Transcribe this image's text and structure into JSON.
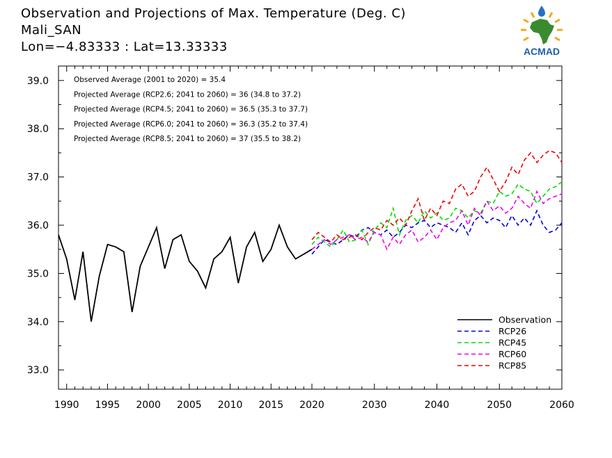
{
  "header": {
    "title_line1": "Observation and Projections of Max. Temperature (Deg. C)",
    "title_line2": "Mali_SAN",
    "title_line3": "Lon=−4.83333 : Lat=13.33333"
  },
  "logo": {
    "text": "ACMAD",
    "colors": {
      "africa": "#3a8a2e",
      "rays": "#f2a91c",
      "drop": "#2a6fc0",
      "text": "#1e5fb0"
    }
  },
  "chart_data": {
    "type": "line",
    "xlim": [
      1989,
      2060
    ],
    "ylim": [
      32.6,
      39.3
    ],
    "x_ticks_left": [
      1990,
      1995,
      2000,
      2005,
      2010,
      2015,
      2020
    ],
    "x_ticks_right": [
      2030,
      2040,
      2050,
      2060
    ],
    "y_ticks": [
      "33.0",
      "34.0",
      "35.0",
      "36.0",
      "37.0",
      "38.0",
      "39.0"
    ],
    "y_tick_values": [
      33,
      34,
      35,
      36,
      37,
      38,
      39
    ],
    "annotations": [
      "Observed Average (2001 to 2020) = 35.4",
      "Projected Average (RCP2.6; 2041 to 2060) = 36 (34.8 to 37.2)",
      "Projected Average (RCP4.5; 2041 to 2060) = 36.5 (35.3 to 37.7)",
      "Projected Average (RCP6.0; 2041 to 2060) = 36.3 (35.2 to 37.4)",
      "Projected Average (RCP8.5; 2041 to 2060) = 37 (35.5 to 38.2)"
    ],
    "legend_position": "bottom-right",
    "series": [
      {
        "name": "Observation",
        "color": "#000000",
        "dashed": false,
        "x": [
          1989,
          1990,
          1991,
          1992,
          1993,
          1994,
          1995,
          1996,
          1997,
          1998,
          1999,
          2000,
          2001,
          2002,
          2003,
          2004,
          2005,
          2006,
          2007,
          2008,
          2009,
          2010,
          2011,
          2012,
          2013,
          2014,
          2015,
          2016,
          2017,
          2018,
          2019,
          2020
        ],
        "y": [
          35.8,
          35.3,
          34.45,
          35.45,
          34.0,
          34.95,
          35.6,
          35.55,
          35.45,
          34.2,
          35.15,
          35.55,
          35.95,
          35.1,
          35.7,
          35.8,
          35.25,
          35.05,
          34.7,
          35.3,
          35.45,
          35.75,
          34.8,
          35.55,
          35.85,
          35.25,
          35.5,
          36.0,
          35.55,
          35.3,
          35.4,
          35.5
        ]
      },
      {
        "name": "RCP26",
        "color": "#0000dd",
        "dashed": true,
        "x": [
          2020,
          2021,
          2022,
          2023,
          2024,
          2025,
          2026,
          2027,
          2028,
          2029,
          2030,
          2031,
          2032,
          2033,
          2034,
          2035,
          2036,
          2037,
          2038,
          2039,
          2040,
          2041,
          2042,
          2043,
          2044,
          2045,
          2046,
          2047,
          2048,
          2049,
          2050,
          2051,
          2052,
          2053,
          2054,
          2055,
          2056,
          2057,
          2058,
          2059,
          2060
        ],
        "y": [
          35.4,
          35.55,
          35.7,
          35.65,
          35.6,
          35.7,
          35.8,
          35.75,
          35.9,
          35.95,
          35.85,
          35.8,
          35.9,
          35.75,
          35.85,
          36.0,
          35.95,
          36.05,
          36.1,
          35.95,
          36.05,
          36.0,
          35.95,
          35.85,
          36.05,
          35.8,
          36.1,
          36.2,
          36.05,
          36.15,
          36.1,
          35.95,
          36.2,
          36.0,
          36.15,
          36.0,
          36.3,
          36.0,
          35.85,
          35.9,
          36.05
        ]
      },
      {
        "name": "RCP45",
        "color": "#00dd00",
        "dashed": true,
        "x": [
          2020,
          2021,
          2022,
          2023,
          2024,
          2025,
          2026,
          2027,
          2028,
          2029,
          2030,
          2031,
          2032,
          2033,
          2034,
          2035,
          2036,
          2037,
          2038,
          2039,
          2040,
          2041,
          2042,
          2043,
          2044,
          2045,
          2046,
          2047,
          2048,
          2049,
          2050,
          2051,
          2052,
          2053,
          2054,
          2055,
          2056,
          2057,
          2058,
          2059,
          2060
        ],
        "y": [
          35.6,
          35.75,
          35.65,
          35.55,
          35.7,
          35.9,
          35.65,
          35.7,
          35.9,
          35.6,
          35.9,
          36.05,
          35.95,
          36.35,
          35.8,
          36.1,
          36.2,
          36.05,
          36.3,
          36.15,
          36.25,
          36.1,
          36.15,
          36.35,
          36.3,
          36.15,
          36.3,
          36.25,
          36.5,
          36.45,
          36.7,
          36.6,
          36.65,
          36.85,
          36.75,
          36.7,
          36.45,
          36.6,
          36.75,
          36.8,
          36.9
        ]
      },
      {
        "name": "RCP60",
        "color": "#ee00ee",
        "dashed": true,
        "x": [
          2020,
          2021,
          2022,
          2023,
          2024,
          2025,
          2026,
          2027,
          2028,
          2029,
          2030,
          2031,
          2032,
          2033,
          2034,
          2035,
          2036,
          2037,
          2038,
          2039,
          2040,
          2041,
          2042,
          2043,
          2044,
          2045,
          2046,
          2047,
          2048,
          2049,
          2050,
          2051,
          2052,
          2053,
          2054,
          2055,
          2056,
          2057,
          2058,
          2059,
          2060
        ],
        "y": [
          35.5,
          35.6,
          35.7,
          35.6,
          35.7,
          35.75,
          35.8,
          35.7,
          35.75,
          35.65,
          35.85,
          35.8,
          35.5,
          35.75,
          35.6,
          35.8,
          35.9,
          35.65,
          35.75,
          35.9,
          35.7,
          35.95,
          36.05,
          36.1,
          36.3,
          36.0,
          36.35,
          36.2,
          36.5,
          36.3,
          36.4,
          36.25,
          36.35,
          36.6,
          36.45,
          36.35,
          36.7,
          36.45,
          36.55,
          36.6,
          36.65
        ]
      },
      {
        "name": "RCP85",
        "color": "#ee0000",
        "dashed": true,
        "x": [
          2020,
          2021,
          2022,
          2023,
          2024,
          2025,
          2026,
          2027,
          2028,
          2029,
          2030,
          2031,
          2032,
          2033,
          2034,
          2035,
          2036,
          2037,
          2038,
          2039,
          2040,
          2041,
          2042,
          2043,
          2044,
          2045,
          2046,
          2047,
          2048,
          2049,
          2050,
          2051,
          2052,
          2053,
          2054,
          2055,
          2056,
          2057,
          2058,
          2059,
          2060
        ],
        "y": [
          35.7,
          35.85,
          35.75,
          35.65,
          35.8,
          35.7,
          35.75,
          35.8,
          35.7,
          35.85,
          35.95,
          35.9,
          36.1,
          36.0,
          36.15,
          36.0,
          36.3,
          36.55,
          36.1,
          36.35,
          36.2,
          36.5,
          36.45,
          36.75,
          36.85,
          36.6,
          36.7,
          37.0,
          37.2,
          36.95,
          36.7,
          36.9,
          37.2,
          37.05,
          37.35,
          37.5,
          37.3,
          37.45,
          37.55,
          37.5,
          37.3
        ]
      }
    ]
  }
}
